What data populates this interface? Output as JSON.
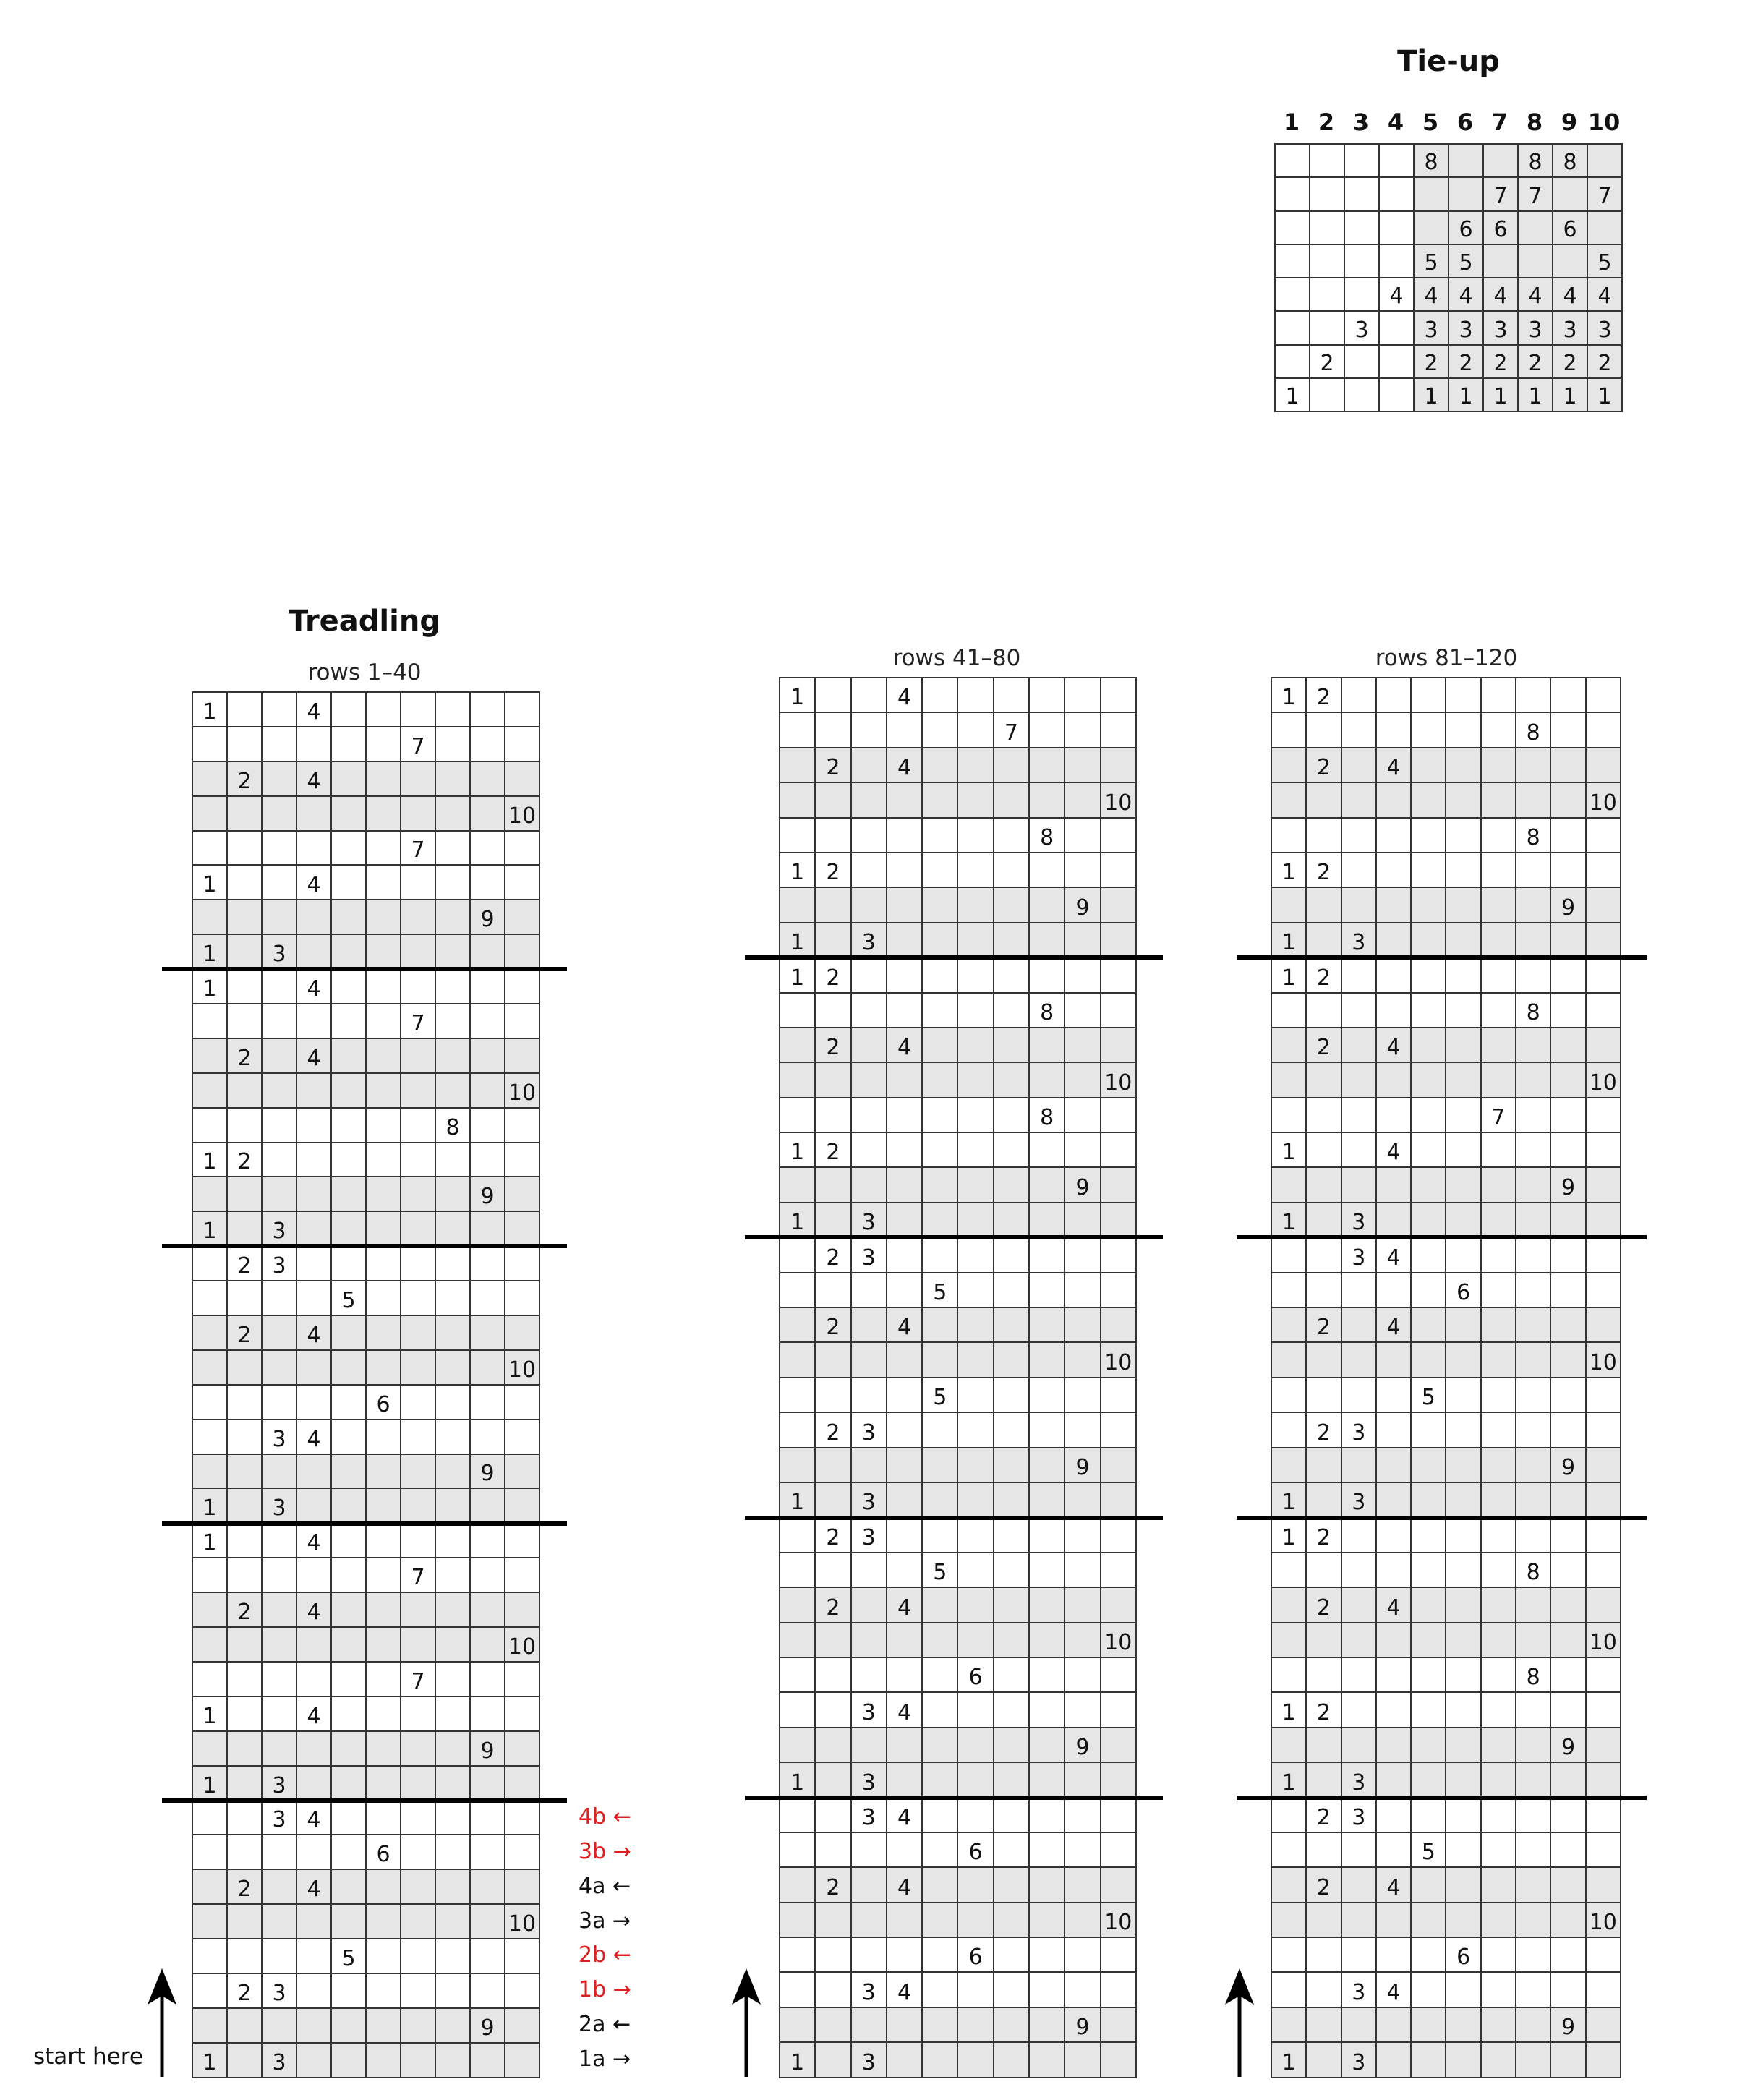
{
  "colors": {
    "shade": "#e6e6e6",
    "line": "#333333",
    "highlight": "#e02020",
    "text": "#111111"
  },
  "tieup": {
    "title": "Tie-up",
    "columns": [
      "1",
      "2",
      "3",
      "4",
      "5",
      "6",
      "7",
      "8",
      "9",
      "10"
    ],
    "shaded_columns_from": 5,
    "rows": [
      [
        null,
        null,
        null,
        null,
        8,
        null,
        null,
        8,
        8,
        null
      ],
      [
        null,
        null,
        null,
        null,
        null,
        null,
        7,
        7,
        null,
        7
      ],
      [
        null,
        null,
        null,
        null,
        null,
        6,
        6,
        null,
        6,
        null
      ],
      [
        null,
        null,
        null,
        null,
        5,
        5,
        null,
        null,
        null,
        5
      ],
      [
        null,
        null,
        null,
        4,
        4,
        4,
        4,
        4,
        4,
        4
      ],
      [
        null,
        null,
        3,
        null,
        3,
        3,
        3,
        3,
        3,
        3
      ],
      [
        null,
        2,
        null,
        null,
        2,
        2,
        2,
        2,
        2,
        2
      ],
      [
        1,
        null,
        null,
        null,
        1,
        1,
        1,
        1,
        1,
        1
      ]
    ]
  },
  "treadling": {
    "title": "Treadling",
    "start_label": "start here",
    "start_icon": "arrow-up-icon",
    "panels": [
      {
        "label": "rows 1–40",
        "rows": [
          [
            1,
            4
          ],
          [
            7
          ],
          [
            2,
            4
          ],
          [
            10
          ],
          [
            7
          ],
          [
            1,
            4
          ],
          [
            9
          ],
          [
            1,
            3
          ],
          [
            1,
            4
          ],
          [
            7
          ],
          [
            2,
            4
          ],
          [
            10
          ],
          [
            8
          ],
          [
            1,
            2
          ],
          [
            9
          ],
          [
            1,
            3
          ],
          [
            2,
            3
          ],
          [
            5
          ],
          [
            2,
            4
          ],
          [
            10
          ],
          [
            6
          ],
          [
            3,
            4
          ],
          [
            9
          ],
          [
            1,
            3
          ],
          [
            1,
            4
          ],
          [
            7
          ],
          [
            2,
            4
          ],
          [
            10
          ],
          [
            7
          ],
          [
            1,
            4
          ],
          [
            9
          ],
          [
            1,
            3
          ],
          [
            3,
            4
          ],
          [
            6
          ],
          [
            2,
            4
          ],
          [
            10
          ],
          [
            5
          ],
          [
            2,
            3
          ],
          [
            9
          ],
          [
            1,
            3
          ]
        ],
        "annotations": [
          {
            "text": "4b",
            "arrow": "←",
            "color": "red"
          },
          {
            "text": "3b",
            "arrow": "→",
            "color": "red"
          },
          {
            "text": "4a",
            "arrow": "←",
            "color": "black"
          },
          {
            "text": "3a",
            "arrow": "→",
            "color": "black"
          },
          {
            "text": "2b",
            "arrow": "←",
            "color": "red"
          },
          {
            "text": "1b",
            "arrow": "→",
            "color": "red"
          },
          {
            "text": "2a",
            "arrow": "←",
            "color": "black"
          },
          {
            "text": "1a",
            "arrow": "→",
            "color": "black"
          }
        ]
      },
      {
        "label": "rows 41–80",
        "rows": [
          [
            1,
            4
          ],
          [
            7
          ],
          [
            2,
            4
          ],
          [
            10
          ],
          [
            8
          ],
          [
            1,
            2
          ],
          [
            9
          ],
          [
            1,
            3
          ],
          [
            1,
            2
          ],
          [
            8
          ],
          [
            2,
            4
          ],
          [
            10
          ],
          [
            8
          ],
          [
            1,
            2
          ],
          [
            9
          ],
          [
            1,
            3
          ],
          [
            2,
            3
          ],
          [
            5
          ],
          [
            2,
            4
          ],
          [
            10
          ],
          [
            5
          ],
          [
            2,
            3
          ],
          [
            9
          ],
          [
            1,
            3
          ],
          [
            2,
            3
          ],
          [
            5
          ],
          [
            2,
            4
          ],
          [
            10
          ],
          [
            6
          ],
          [
            3,
            4
          ],
          [
            9
          ],
          [
            1,
            3
          ],
          [
            3,
            4
          ],
          [
            6
          ],
          [
            2,
            4
          ],
          [
            10
          ],
          [
            6
          ],
          [
            3,
            4
          ],
          [
            9
          ],
          [
            1,
            3
          ]
        ]
      },
      {
        "label": "rows 81–120",
        "rows": [
          [
            1,
            2
          ],
          [
            8
          ],
          [
            2,
            4
          ],
          [
            10
          ],
          [
            8
          ],
          [
            1,
            2
          ],
          [
            9
          ],
          [
            1,
            3
          ],
          [
            1,
            2
          ],
          [
            8
          ],
          [
            2,
            4
          ],
          [
            10
          ],
          [
            7
          ],
          [
            1,
            4
          ],
          [
            9
          ],
          [
            1,
            3
          ],
          [
            3,
            4
          ],
          [
            6
          ],
          [
            2,
            4
          ],
          [
            10
          ],
          [
            5
          ],
          [
            2,
            3
          ],
          [
            9
          ],
          [
            1,
            3
          ],
          [
            1,
            2
          ],
          [
            8
          ],
          [
            2,
            4
          ],
          [
            10
          ],
          [
            8
          ],
          [
            1,
            2
          ],
          [
            9
          ],
          [
            1,
            3
          ],
          [
            2,
            3
          ],
          [
            5
          ],
          [
            2,
            4
          ],
          [
            10
          ],
          [
            6
          ],
          [
            3,
            4
          ],
          [
            9
          ],
          [
            1,
            3
          ]
        ]
      }
    ]
  }
}
